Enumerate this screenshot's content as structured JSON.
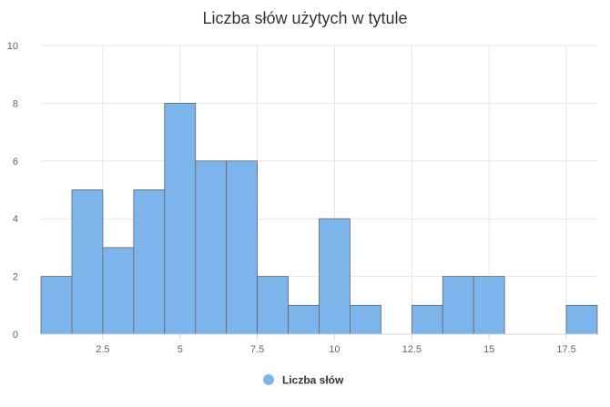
{
  "chart_data": {
    "type": "bar",
    "title": "Liczba słów użytych w tytule",
    "xlabel": "",
    "ylabel": "",
    "series": [
      {
        "name": "Liczba słów",
        "color": "#7cb5ec",
        "bins": [
          {
            "x": 1,
            "y": 2
          },
          {
            "x": 2,
            "y": 5
          },
          {
            "x": 3,
            "y": 3
          },
          {
            "x": 4,
            "y": 5
          },
          {
            "x": 5,
            "y": 8
          },
          {
            "x": 6,
            "y": 6
          },
          {
            "x": 7,
            "y": 6
          },
          {
            "x": 8,
            "y": 2
          },
          {
            "x": 9,
            "y": 1
          },
          {
            "x": 10,
            "y": 4
          },
          {
            "x": 11,
            "y": 1
          },
          {
            "x": 12,
            "y": 0
          },
          {
            "x": 13,
            "y": 1
          },
          {
            "x": 14,
            "y": 2
          },
          {
            "x": 15,
            "y": 2
          },
          {
            "x": 16,
            "y": 0
          },
          {
            "x": 17,
            "y": 0
          },
          {
            "x": 18,
            "y": 1
          }
        ]
      }
    ],
    "xlim": [
      0.5,
      18.5
    ],
    "ylim": [
      0,
      10
    ],
    "x_ticks": [
      "2.5",
      "5",
      "7.5",
      "10",
      "12.5",
      "15",
      "17.5"
    ],
    "y_ticks": [
      "0",
      "2",
      "4",
      "6",
      "8",
      "10"
    ],
    "grid": true,
    "legend_position": "bottom-center"
  }
}
